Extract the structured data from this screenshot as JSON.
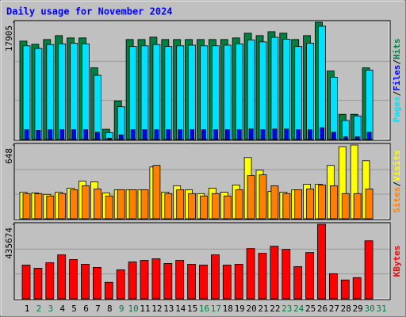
{
  "chart_data": [
    {
      "type": "bar",
      "title": "Daily usage for November 2024",
      "ylim": [
        0,
        17905
      ],
      "yticks": [
        17905
      ],
      "grid": true,
      "legend_separator": "/",
      "series": [
        {
          "name": "Hits",
          "color": "#008040",
          "values": [
            15021,
            14540,
            15262,
            15862,
            15502,
            15502,
            10935,
            1562,
            5888,
            15262,
            15262,
            15622,
            15262,
            15262,
            15262,
            15262,
            15262,
            15262,
            15502,
            16223,
            15862,
            16463,
            16223,
            15262,
            15862,
            17905,
            10455,
            3845,
            3845,
            10935,
            0
          ]
        },
        {
          "name": "Files",
          "color": "#0000ff",
          "values": [
            1500,
            1400,
            1500,
            1500,
            1500,
            1500,
            1100,
            200,
            700,
            1500,
            1500,
            1500,
            1500,
            1500,
            1500,
            1500,
            1500,
            1500,
            1500,
            1600,
            1500,
            1600,
            1600,
            1500,
            1500,
            1800,
            1100,
            400,
            400,
            1100,
            0
          ]
        },
        {
          "name": "Pages",
          "color": "#00e0ff",
          "values": [
            14300,
            13900,
            14500,
            14600,
            14700,
            14600,
            9800,
            1050,
            5000,
            14200,
            14300,
            14500,
            14200,
            14300,
            14400,
            14300,
            14300,
            14400,
            14600,
            15200,
            14900,
            15600,
            15300,
            14200,
            14700,
            17300,
            9500,
            2900,
            3600,
            10600,
            0
          ]
        }
      ]
    },
    {
      "type": "bar",
      "ylim": [
        0,
        648
      ],
      "yticks": [
        648
      ],
      "grid": true,
      "legend_separator": "/",
      "series": [
        {
          "name": "Visits",
          "color": "#ffff00",
          "values": [
            234,
            227,
            214,
            234,
            269,
            331,
            324,
            227,
            255,
            255,
            255,
            455,
            234,
            290,
            255,
            221,
            269,
            234,
            296,
            538,
            427,
            241,
            234,
            255,
            303,
            303,
            469,
            634,
            648,
            510,
            0
          ]
        },
        {
          "name": "Sites",
          "color": "#ff8000",
          "values": [
            221,
            221,
            200,
            221,
            255,
            290,
            262,
            200,
            255,
            255,
            255,
            469,
            221,
            255,
            221,
            200,
            221,
            200,
            255,
            379,
            386,
            290,
            221,
            255,
            262,
            296,
            290,
            221,
            221,
            262,
            0
          ]
        }
      ]
    },
    {
      "type": "bar",
      "ylim": [
        0,
        435674
      ],
      "yticks": [
        435674
      ],
      "grid": true,
      "categories": [
        "1",
        "2",
        "3",
        "4",
        "5",
        "6",
        "7",
        "8",
        "9",
        "10",
        "11",
        "12",
        "13",
        "14",
        "15",
        "16",
        "17",
        "18",
        "19",
        "20",
        "21",
        "22",
        "23",
        "24",
        "25",
        "26",
        "27",
        "28",
        "29",
        "30",
        "31"
      ],
      "x_label_colors": [
        "#000000",
        "#008040",
        "#008040",
        "#000000",
        "#000000",
        "#000000",
        "#000000",
        "#000000",
        "#008040",
        "#008040",
        "#000000",
        "#000000",
        "#000000",
        "#000000",
        "#000000",
        "#008040",
        "#008040",
        "#000000",
        "#000000",
        "#000000",
        "#000000",
        "#000000",
        "#008040",
        "#008040",
        "#000000",
        "#000000",
        "#000000",
        "#000000",
        "#000000",
        "#008040",
        "#008040"
      ],
      "series": [
        {
          "name": "KBytes",
          "color": "#ff0000",
          "values": [
            197199,
            178856,
            210956,
            256815,
            229300,
            201786,
            183442,
            96306,
            169684,
            215541,
            224713,
            233885,
            206370,
            224713,
            201786,
            197199,
            256815,
            197199,
            201786,
            293507,
            265993,
            307264,
            288921,
            188028,
            270578,
            435674,
            146753,
            110065,
            123823,
            339366,
            0
          ]
        }
      ]
    }
  ]
}
